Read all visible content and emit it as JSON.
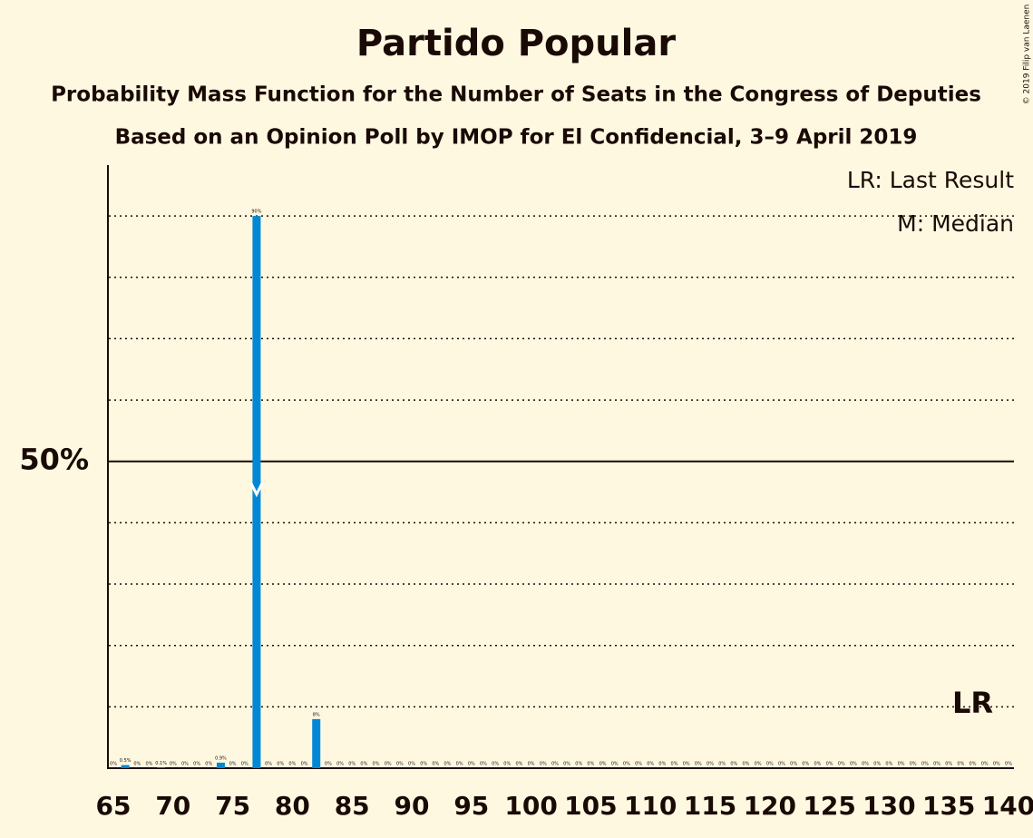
{
  "chart_data": {
    "type": "bar",
    "title": "Partido Popular",
    "subtitle": "Probability Mass Function for the Number of Seats in the Congress of Deputies",
    "subtitle2": "Based on an Opinion Poll by IMOP for El Confidencial, 3–9 April 2019",
    "copyright": "© 2019 Filip van Laenen",
    "legend": [
      "LR: Last Result",
      "M: Median"
    ],
    "last_result_label": "LR",
    "color": "#0088d6",
    "x": [
      65,
      66,
      67,
      68,
      69,
      70,
      71,
      72,
      73,
      74,
      75,
      76,
      77,
      78,
      79,
      80,
      81,
      82,
      83,
      84,
      85,
      86,
      87,
      88,
      89,
      90,
      91,
      92,
      93,
      94,
      95,
      96,
      97,
      98,
      99,
      100,
      101,
      102,
      103,
      104,
      105,
      106,
      107,
      108,
      109,
      110,
      111,
      112,
      113,
      114,
      115,
      116,
      117,
      118,
      119,
      120,
      121,
      122,
      123,
      124,
      125,
      126,
      127,
      128,
      129,
      130,
      131,
      132,
      133,
      134,
      135,
      136,
      137,
      138,
      139,
      140
    ],
    "values": [
      0,
      0.5,
      0,
      0,
      0.1,
      0,
      0,
      0,
      0,
      0.9,
      0,
      0,
      90,
      0,
      0,
      0,
      0,
      8,
      0,
      0,
      0,
      0,
      0,
      0,
      0,
      0,
      0,
      0,
      0,
      0,
      0,
      0,
      0,
      0,
      0,
      0,
      0,
      0,
      0,
      0,
      0,
      0,
      0,
      0,
      0,
      0,
      0,
      0,
      0,
      0,
      0,
      0,
      0,
      0,
      0,
      0,
      0,
      0,
      0,
      0,
      0,
      0,
      0,
      0,
      0,
      0,
      0,
      0,
      0,
      0,
      0,
      0,
      0,
      0,
      0,
      0
    ],
    "value_labels": [
      "0%",
      "0.5%",
      "0%",
      "0%",
      "0.1%",
      "0%",
      "0%",
      "0%",
      "0%",
      "0.9%",
      "0%",
      "0%",
      "90%",
      "0%",
      "0%",
      "0%",
      "0%",
      "8%",
      "0%",
      "0%",
      "0%",
      "0%",
      "0%",
      "0%",
      "0%",
      "0%",
      "0%",
      "0%",
      "0%",
      "0%",
      "0%",
      "0%",
      "0%",
      "0%",
      "0%",
      "0%",
      "0%",
      "0%",
      "0%",
      "0%",
      "0%",
      "0%",
      "0%",
      "0%",
      "0%",
      "0%",
      "0%",
      "0%",
      "0%",
      "0%",
      "0%",
      "0%",
      "0%",
      "0%",
      "0%",
      "0%",
      "0%",
      "0%",
      "0%",
      "0%",
      "0%",
      "0%",
      "0%",
      "0%",
      "0%",
      "0%",
      "0%",
      "0%",
      "0%",
      "0%",
      "0%",
      "0%",
      "0%",
      "0%",
      "0%",
      "0%"
    ],
    "median": 77,
    "last_result": 137,
    "xlim": [
      65,
      140
    ],
    "xticks": [
      65,
      70,
      75,
      80,
      85,
      90,
      95,
      100,
      105,
      110,
      115,
      120,
      125,
      130,
      135,
      140
    ],
    "ylim": [
      0,
      98
    ],
    "yticks": [
      {
        "value": 50,
        "label": "50%"
      }
    ],
    "minor_gridlines": [
      10,
      20,
      30,
      40,
      60,
      70,
      80,
      90
    ]
  }
}
